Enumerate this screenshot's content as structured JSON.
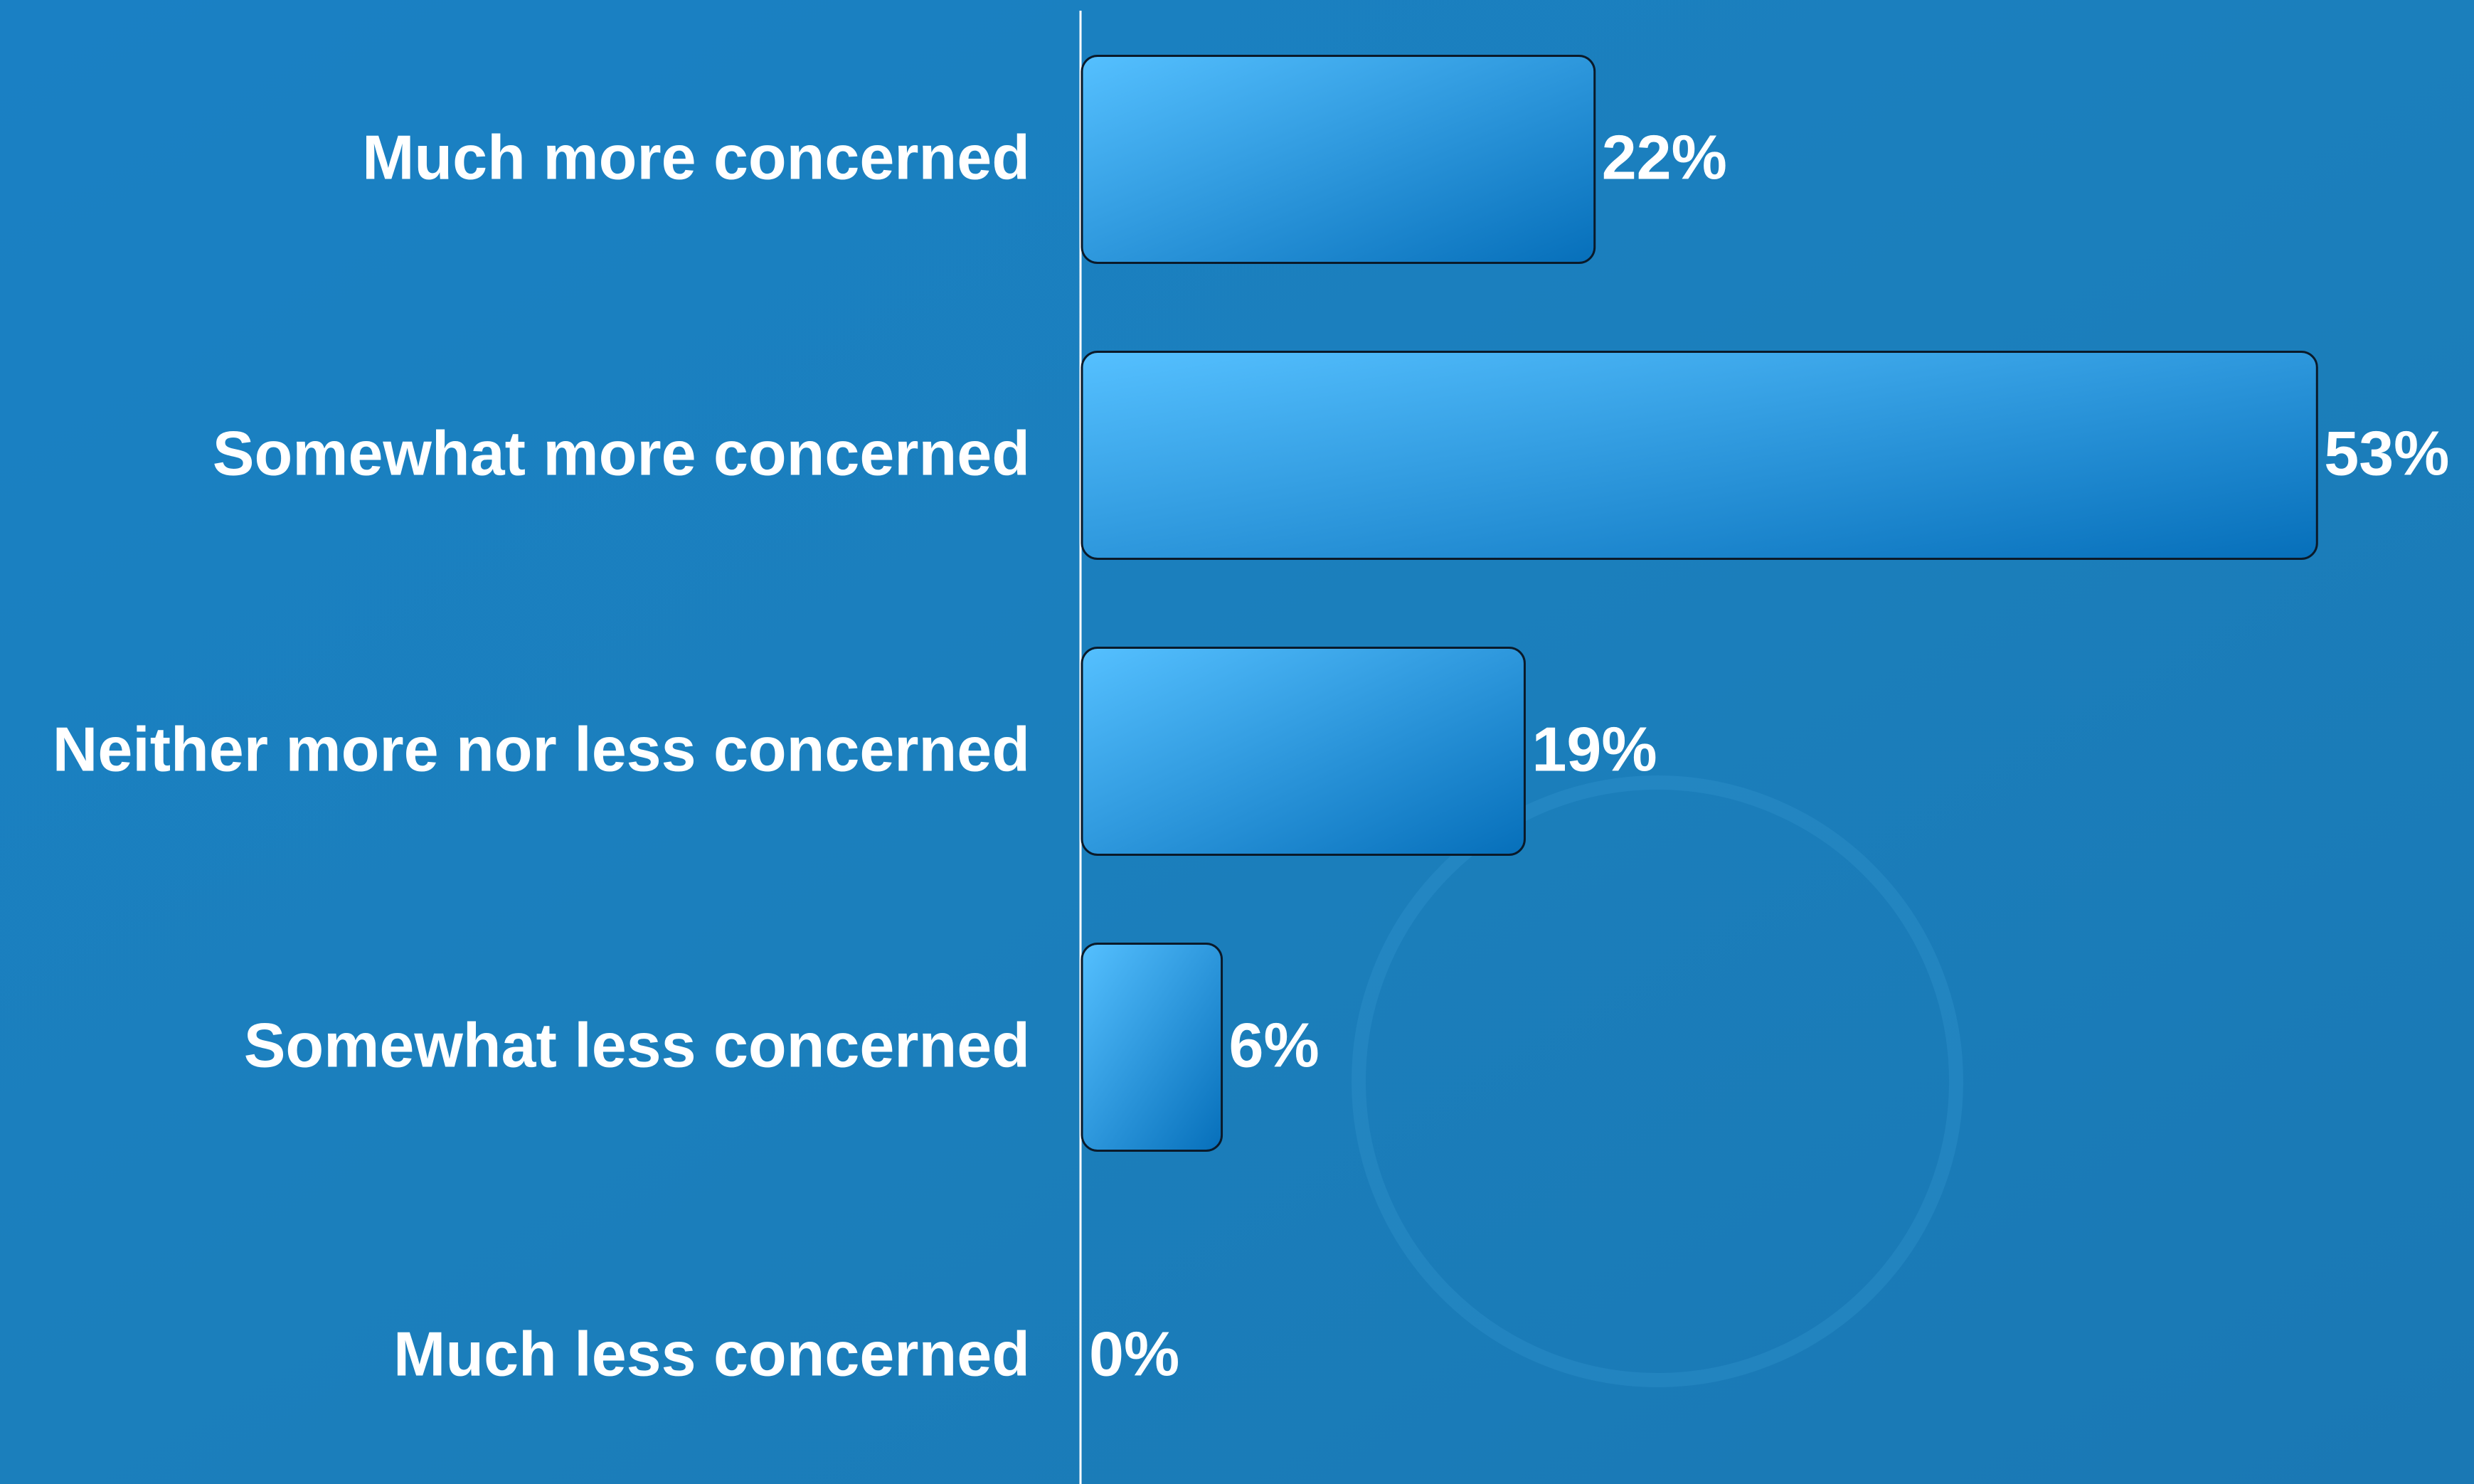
{
  "chart_data": {
    "type": "bar",
    "orientation": "horizontal",
    "categories": [
      "Much more concerned",
      "Somewhat more concerned",
      "Neither more nor less concerned",
      "Somewhat less concerned",
      "Much less concerned"
    ],
    "values": [
      22,
      53,
      19,
      6,
      0
    ],
    "value_labels": [
      "22%",
      "53%",
      "19%",
      "6%",
      "0%"
    ],
    "color": "#2a9ee8"
  }
}
